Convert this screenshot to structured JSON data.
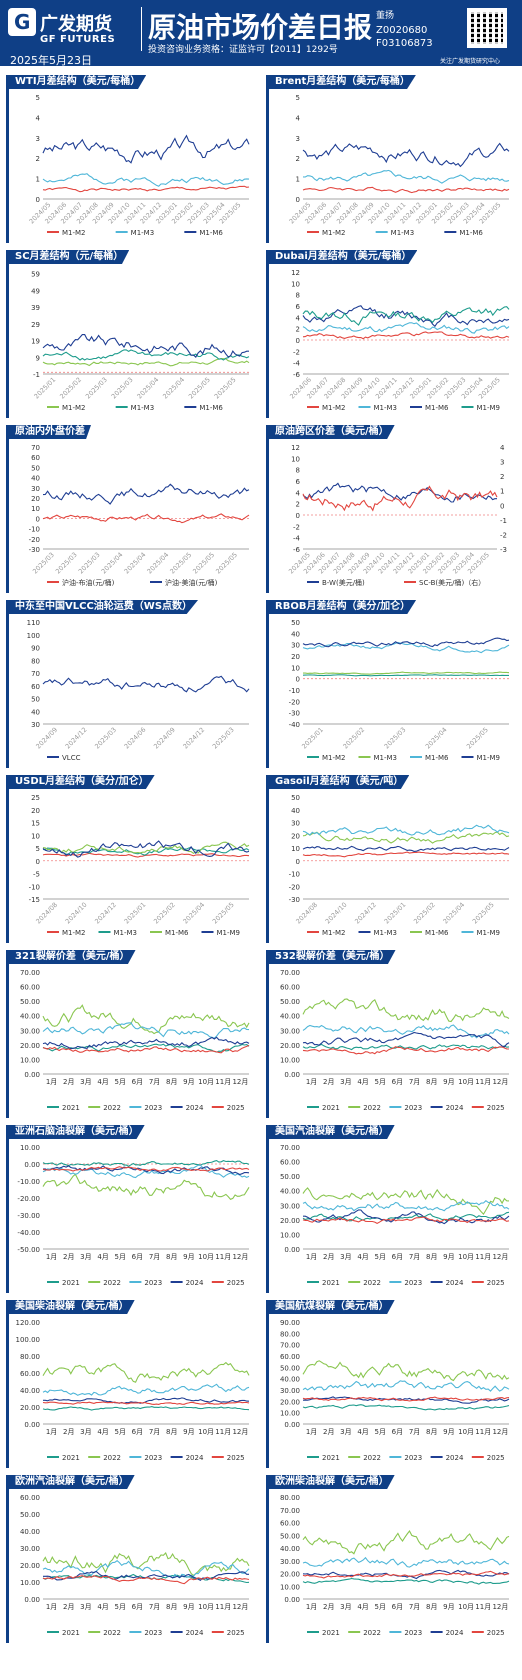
{
  "header": {
    "company_cn": "广发期货",
    "company_en": "GF FUTURES",
    "date": "2025年5月23日",
    "title": "原油市场价差日报",
    "qualification": "投资咨询业务资格：证监许可【2011】1292号",
    "author": "董扬",
    "codes": [
      "Z0020680",
      "F03106873"
    ],
    "footnote": "关注广发期货研究中心"
  },
  "colors": {
    "brand": "#0f3f86",
    "red": "#e2463f",
    "lightblue": "#4fb6d8",
    "darkblue": "#1f3e93",
    "teal": "#1e9c8c",
    "green": "#8ac650"
  },
  "chart_data": [
    {
      "type": "line",
      "title": "WTI月差结构（美元/每桶）",
      "ylim": [
        0,
        5
      ],
      "yticks": [
        0,
        1,
        2,
        3,
        4,
        5
      ],
      "xticks": [
        "2024/05",
        "2024/06",
        "2024/07",
        "2024/08",
        "2024/09",
        "2024/10",
        "2024/11",
        "2024/12",
        "2025/01",
        "2025/02",
        "2025/03",
        "2025/04",
        "2025/05"
      ],
      "series": [
        {
          "name": "M1-M2",
          "color": "#e2463f",
          "base": 0.45,
          "amp": 0.25,
          "seed": 1
        },
        {
          "name": "M1-M3",
          "color": "#4fb6d8",
          "base": 1.0,
          "amp": 0.5,
          "seed": 2
        },
        {
          "name": "M1-M6",
          "color": "#1f3e93",
          "base": 2.4,
          "amp": 1.2,
          "seed": 3
        }
      ]
    },
    {
      "type": "line",
      "title": "Brent月差结构（美元/每桶）",
      "ylim": [
        0,
        5
      ],
      "yticks": [
        0,
        1,
        2,
        3,
        4,
        5
      ],
      "xticks": [
        "2024/05",
        "2024/06",
        "2024/07",
        "2024/08",
        "2024/09",
        "2024/10",
        "2024/11",
        "2024/12",
        "2025/01",
        "2025/02",
        "2025/03",
        "2025/04",
        "2025/05"
      ],
      "series": [
        {
          "name": "M1-M2",
          "color": "#e2463f",
          "base": 0.5,
          "amp": 0.3,
          "seed": 4
        },
        {
          "name": "M1-M3",
          "color": "#4fb6d8",
          "base": 1.0,
          "amp": 0.5,
          "seed": 5
        },
        {
          "name": "M1-M6",
          "color": "#1f3e93",
          "base": 2.3,
          "amp": 1.0,
          "seed": 6
        }
      ]
    },
    {
      "type": "line",
      "title": "SC月差结构（元/每桶）",
      "ylim": [
        -1,
        60
      ],
      "yticks": [
        -1,
        9,
        19,
        29,
        39,
        49,
        59
      ],
      "xticks": [
        "2025/01",
        "2025/02",
        "2025/03",
        "2025/03",
        "2025/04",
        "2025/04",
        "2025/05",
        "2025/05"
      ],
      "series": [
        {
          "name": "M1-M2",
          "color": "#8ac650",
          "base": 6,
          "amp": 4,
          "seed": 7
        },
        {
          "name": "M1-M3",
          "color": "#1e9c8c",
          "base": 10,
          "amp": 6,
          "seed": 8
        },
        {
          "name": "M1-M6",
          "color": "#1f3e93",
          "base": 16,
          "amp": 12,
          "seed": 9
        }
      ]
    },
    {
      "type": "line",
      "title": "Dubai月差结构（美元/每桶）",
      "ylim": [
        -6,
        12
      ],
      "yticks": [
        -6,
        -4,
        -2,
        0,
        2,
        4,
        6,
        8,
        10,
        12
      ],
      "xticks": [
        "2024/06",
        "2024/07",
        "2024/08",
        "2024/09",
        "2024/10",
        "2024/11",
        "2024/12",
        "2025/01",
        "2025/02",
        "2025/03",
        "2025/04",
        "2025/05"
      ],
      "series": [
        {
          "name": "M1-M2",
          "color": "#e2463f",
          "base": 0.8,
          "amp": 1.2,
          "seed": 10
        },
        {
          "name": "M1-M3",
          "color": "#4fb6d8",
          "base": 2,
          "amp": 2,
          "seed": 11
        },
        {
          "name": "M1-M6",
          "color": "#1f3e93",
          "base": 4,
          "amp": 3,
          "seed": 12
        },
        {
          "name": "M1-M9",
          "color": "#1e9c8c",
          "base": 4.5,
          "amp": 3,
          "seed": 13
        }
      ]
    },
    {
      "type": "line",
      "title": "原油内外盘价差",
      "ylim": [
        -30,
        70
      ],
      "yticks": [
        -30,
        -20,
        -10,
        0,
        10,
        20,
        30,
        40,
        50,
        60,
        70
      ],
      "xticks": [
        "2025/03",
        "2025/03",
        "2025/03",
        "2025/04",
        "2025/04",
        "2025/04",
        "2025/05",
        "2025/05",
        "2025/05"
      ],
      "series": [
        {
          "name": "沪油-布油(元/桶)",
          "color": "#e2463f",
          "base": 0,
          "amp": 8,
          "seed": 14
        },
        {
          "name": "沪油-美油(元/桶)",
          "color": "#1f3e93",
          "base": 25,
          "amp": 15,
          "seed": 15
        }
      ]
    },
    {
      "type": "line",
      "title": "原油跨区价差（美元/桶）",
      "ylim": [
        -6,
        12
      ],
      "yticks": [
        -6,
        -4,
        -2,
        0,
        2,
        4,
        6,
        8,
        10,
        12
      ],
      "y2ticks": [
        -3,
        -2,
        -1,
        0,
        1,
        2,
        3,
        4
      ],
      "xticks": [
        "2024/05",
        "2024/06",
        "2024/07",
        "2024/08",
        "2024/09",
        "2024/10",
        "2024/11",
        "2024/12",
        "2025/01",
        "2025/02",
        "2025/03",
        "2025/04",
        "2025/05"
      ],
      "series": [
        {
          "name": "B-W(美元/桶)",
          "color": "#1f3e93",
          "base": 4,
          "amp": 3,
          "seed": 16
        },
        {
          "name": "SC-B(美元/桶)（右）",
          "color": "#e2463f",
          "base": 3,
          "amp": 4,
          "seed": 17
        }
      ]
    },
    {
      "type": "line",
      "title": "中东至中国VLCC油轮运费（WS点数）",
      "ylim": [
        30,
        110
      ],
      "yticks": [
        30,
        40,
        50,
        60,
        70,
        80,
        90,
        100,
        110
      ],
      "xticks": [
        "2024/09",
        "2024/12",
        "2025/03",
        "2024/06",
        "2024/09",
        "2024/12",
        "2025/03"
      ],
      "series": [
        {
          "name": "VLCC",
          "color": "#1f3e93",
          "base": 60,
          "amp": 12,
          "seed": 18
        }
      ]
    },
    {
      "type": "line",
      "title": "RBOB月差结构（美分/加仑）",
      "ylim": [
        -40,
        50
      ],
      "yticks": [
        -40,
        -30,
        -20,
        -10,
        0,
        10,
        20,
        30,
        40,
        50
      ],
      "xticks": [
        "2025/01",
        "2025/02",
        "2025/03",
        "2025/04",
        "2025/05"
      ],
      "series": [
        {
          "name": "M1-M2",
          "color": "#1e9c8c",
          "base": 3,
          "amp": 1,
          "seed": 19
        },
        {
          "name": "M1-M3",
          "color": "#8ac650",
          "base": 5,
          "amp": 1.5,
          "seed": 20
        },
        {
          "name": "M1-M6",
          "color": "#4fb6d8",
          "base": 28,
          "amp": 6,
          "seed": 21
        },
        {
          "name": "M1-M9",
          "color": "#1f3e93",
          "base": 32,
          "amp": 6,
          "seed": 22
        }
      ]
    },
    {
      "type": "line",
      "title": "USDL月差结构（美分/加仑）",
      "ylim": [
        -15,
        25
      ],
      "yticks": [
        -15,
        -10,
        -5,
        0,
        5,
        10,
        15,
        20,
        25
      ],
      "xticks": [
        "2024/08",
        "2024/10",
        "2024/12",
        "2025/01",
        "2025/02",
        "2025/04",
        "2025/05"
      ],
      "series": [
        {
          "name": "M1-M2",
          "color": "#e2463f",
          "base": 2,
          "amp": 1.5,
          "seed": 23
        },
        {
          "name": "M1-M3",
          "color": "#1e9c8c",
          "base": 4,
          "amp": 3,
          "seed": 24
        },
        {
          "name": "M1-M6",
          "color": "#8ac650",
          "base": 5,
          "amp": 4,
          "seed": 25
        },
        {
          "name": "M1-M9",
          "color": "#1f3e93",
          "base": 5,
          "amp": 6,
          "seed": 26
        }
      ]
    },
    {
      "type": "line",
      "title": "Gasoil月差结构（美元/吨）",
      "ylim": [
        -30,
        50
      ],
      "yticks": [
        -30,
        -20,
        -10,
        0,
        10,
        20,
        30,
        40,
        50
      ],
      "xticks": [
        "2024/08",
        "2024/10",
        "2024/12",
        "2025/01",
        "2025/02",
        "2025/04",
        "2025/05"
      ],
      "series": [
        {
          "name": "M1-M2",
          "color": "#e2463f",
          "base": 5,
          "amp": 3,
          "seed": 27
        },
        {
          "name": "M1-M3",
          "color": "#1f3e93",
          "base": 10,
          "amp": 5,
          "seed": 28
        },
        {
          "name": "M1-M6",
          "color": "#8ac650",
          "base": 18,
          "amp": 8,
          "seed": 29
        },
        {
          "name": "M1-M9",
          "color": "#4fb6d8",
          "base": 22,
          "amp": 9,
          "seed": 30
        }
      ]
    },
    {
      "type": "line",
      "title": "321裂解价差（美元/桶）",
      "ylim": [
        0,
        70
      ],
      "yticks": [
        "0.00",
        "10.00",
        "20.00",
        "30.00",
        "40.00",
        "50.00",
        "60.00",
        "70.00"
      ],
      "ymax": 70,
      "xticks": [
        "1月",
        "2月",
        "3月",
        "4月",
        "5月",
        "6月",
        "7月",
        "8月",
        "9月",
        "10月",
        "11月",
        "12月"
      ],
      "series": [
        {
          "name": "2021",
          "color": "#1e9c8c",
          "base": 18,
          "amp": 5,
          "seed": 31
        },
        {
          "name": "2022",
          "color": "#8ac650",
          "base": 40,
          "amp": 15,
          "seed": 32
        },
        {
          "name": "2023",
          "color": "#4fb6d8",
          "base": 30,
          "amp": 9,
          "seed": 33
        },
        {
          "name": "2024",
          "color": "#1f3e93",
          "base": 22,
          "amp": 7,
          "seed": 34
        },
        {
          "name": "2025",
          "color": "#e2463f",
          "base": 17,
          "amp": 5,
          "seed": 35
        }
      ]
    },
    {
      "type": "line",
      "title": "532裂解价差（美元/桶）",
      "ylim": [
        0,
        70
      ],
      "yticks": [
        "0.00",
        "10.00",
        "20.00",
        "30.00",
        "40.00",
        "50.00",
        "60.00",
        "70.00"
      ],
      "xticks": [
        "1月",
        "2月",
        "3月",
        "4月",
        "5月",
        "6月",
        "7月",
        "8月",
        "9月",
        "10月",
        "11月",
        "12月"
      ],
      "series": [
        {
          "name": "2021",
          "color": "#1e9c8c",
          "base": 18,
          "amp": 5,
          "seed": 36
        },
        {
          "name": "2022",
          "color": "#8ac650",
          "base": 40,
          "amp": 15,
          "seed": 37
        },
        {
          "name": "2023",
          "color": "#4fb6d8",
          "base": 30,
          "amp": 9,
          "seed": 38
        },
        {
          "name": "2024",
          "color": "#1f3e93",
          "base": 22,
          "amp": 7,
          "seed": 39
        },
        {
          "name": "2025",
          "color": "#e2463f",
          "base": 17,
          "amp": 5,
          "seed": 40
        }
      ]
    },
    {
      "type": "line",
      "title": "亚洲石脑油裂解（美元/桶）",
      "ylim": [
        -50,
        10
      ],
      "yticks": [
        "-50.00",
        "-40.00",
        "-30.00",
        "-20.00",
        "-10.00",
        "0.00",
        "10.00"
      ],
      "xticks": [
        "1月",
        "2月",
        "3月",
        "4月",
        "5月",
        "6月",
        "7月",
        "8月",
        "9月",
        "10月",
        "11月",
        "12月"
      ],
      "series": [
        {
          "name": "2021",
          "color": "#1e9c8c",
          "base": 0,
          "amp": 4,
          "seed": 41
        },
        {
          "name": "2022",
          "color": "#8ac650",
          "base": -15,
          "amp": 12,
          "seed": 42
        },
        {
          "name": "2023",
          "color": "#4fb6d8",
          "base": -5,
          "amp": 6,
          "seed": 43
        },
        {
          "name": "2024",
          "color": "#1f3e93",
          "base": -3,
          "amp": 5,
          "seed": 44
        },
        {
          "name": "2025",
          "color": "#e2463f",
          "base": -3,
          "amp": 3,
          "seed": 45
        }
      ]
    },
    {
      "type": "line",
      "title": "美国汽油裂解（美元/桶）",
      "ylim": [
        0,
        70
      ],
      "yticks": [
        "0.00",
        "10.00",
        "20.00",
        "30.00",
        "40.00",
        "50.00",
        "60.00",
        "70.00"
      ],
      "xticks": [
        "1月",
        "2月",
        "3月",
        "4月",
        "5月",
        "6月",
        "7月",
        "8月",
        "9月",
        "10月",
        "11月",
        "12月"
      ],
      "series": [
        {
          "name": "2021",
          "color": "#1e9c8c",
          "base": 22,
          "amp": 6,
          "seed": 46
        },
        {
          "name": "2022",
          "color": "#8ac650",
          "base": 35,
          "amp": 14,
          "seed": 47
        },
        {
          "name": "2023",
          "color": "#4fb6d8",
          "base": 30,
          "amp": 9,
          "seed": 48
        },
        {
          "name": "2024",
          "color": "#1f3e93",
          "base": 22,
          "amp": 7,
          "seed": 49
        },
        {
          "name": "2025",
          "color": "#e2463f",
          "base": 20,
          "amp": 5,
          "seed": 50
        }
      ]
    },
    {
      "type": "line",
      "title": "美国柴油裂解（美元/桶）",
      "ylim": [
        0,
        120
      ],
      "yticks": [
        "0.00",
        "20.00",
        "40.00",
        "60.00",
        "80.00",
        "100.00",
        "120.00"
      ],
      "xticks": [
        "1月",
        "2月",
        "3月",
        "4月",
        "5月",
        "6月",
        "7月",
        "8月",
        "9月",
        "10月",
        "11月",
        "12月"
      ],
      "series": [
        {
          "name": "2021",
          "color": "#1e9c8c",
          "base": 18,
          "amp": 4,
          "seed": 51
        },
        {
          "name": "2022",
          "color": "#8ac650",
          "base": 60,
          "amp": 22,
          "seed": 52
        },
        {
          "name": "2023",
          "color": "#4fb6d8",
          "base": 40,
          "amp": 12,
          "seed": 53
        },
        {
          "name": "2024",
          "color": "#1f3e93",
          "base": 27,
          "amp": 6,
          "seed": 54
        },
        {
          "name": "2025",
          "color": "#e2463f",
          "base": 25,
          "amp": 4,
          "seed": 55
        }
      ]
    },
    {
      "type": "line",
      "title": "美国航煤裂解（美元/桶）",
      "ylim": [
        0,
        90
      ],
      "yticks": [
        "0.00",
        "10.00",
        "20.00",
        "30.00",
        "40.00",
        "50.00",
        "60.00",
        "70.00",
        "80.00",
        "90.00"
      ],
      "xticks": [
        "1月",
        "2月",
        "3月",
        "4月",
        "5月",
        "6月",
        "7月",
        "8月",
        "9月",
        "10月",
        "11月",
        "12月"
      ],
      "series": [
        {
          "name": "2021",
          "color": "#1e9c8c",
          "base": 15,
          "amp": 4,
          "seed": 56
        },
        {
          "name": "2022",
          "color": "#8ac650",
          "base": 45,
          "amp": 18,
          "seed": 57
        },
        {
          "name": "2023",
          "color": "#4fb6d8",
          "base": 32,
          "amp": 12,
          "seed": 58
        },
        {
          "name": "2024",
          "color": "#1f3e93",
          "base": 22,
          "amp": 5,
          "seed": 59
        },
        {
          "name": "2025",
          "color": "#e2463f",
          "base": 22,
          "amp": 4,
          "seed": 60
        }
      ]
    },
    {
      "type": "line",
      "title": "欧洲汽油裂解（美元/桶）",
      "ylim": [
        0,
        60
      ],
      "yticks": [
        "0.00",
        "10.00",
        "20.00",
        "30.00",
        "40.00",
        "50.00",
        "60.00"
      ],
      "xticks": [
        "1月",
        "2月",
        "3月",
        "4月",
        "5月",
        "6月",
        "7月",
        "8月",
        "9月",
        "10月",
        "11月",
        "12月"
      ],
      "series": [
        {
          "name": "2021",
          "color": "#1e9c8c",
          "base": 12,
          "amp": 4,
          "seed": 61
        },
        {
          "name": "2022",
          "color": "#8ac650",
          "base": 22,
          "amp": 14,
          "seed": 62
        },
        {
          "name": "2023",
          "color": "#4fb6d8",
          "base": 18,
          "amp": 8,
          "seed": 63
        },
        {
          "name": "2024",
          "color": "#1f3e93",
          "base": 14,
          "amp": 5,
          "seed": 64
        },
        {
          "name": "2025",
          "color": "#e2463f",
          "base": 13,
          "amp": 4,
          "seed": 65
        }
      ]
    },
    {
      "type": "line",
      "title": "欧洲柴油裂解（美元/桶）",
      "ylim": [
        0,
        80
      ],
      "yticks": [
        "0.00",
        "10.00",
        "20.00",
        "30.00",
        "40.00",
        "50.00",
        "60.00",
        "70.00",
        "80.00"
      ],
      "xticks": [
        "1月",
        "2月",
        "3月",
        "4月",
        "5月",
        "6月",
        "7月",
        "8月",
        "9月",
        "10月",
        "11月",
        "12月"
      ],
      "series": [
        {
          "name": "2021",
          "color": "#1e9c8c",
          "base": 13,
          "amp": 4,
          "seed": 66
        },
        {
          "name": "2022",
          "color": "#8ac650",
          "base": 45,
          "amp": 16,
          "seed": 67
        },
        {
          "name": "2023",
          "color": "#4fb6d8",
          "base": 28,
          "amp": 10,
          "seed": 68
        },
        {
          "name": "2024",
          "color": "#1f3e93",
          "base": 20,
          "amp": 5,
          "seed": 69
        },
        {
          "name": "2025",
          "color": "#e2463f",
          "base": 19,
          "amp": 4,
          "seed": 70
        }
      ]
    }
  ]
}
